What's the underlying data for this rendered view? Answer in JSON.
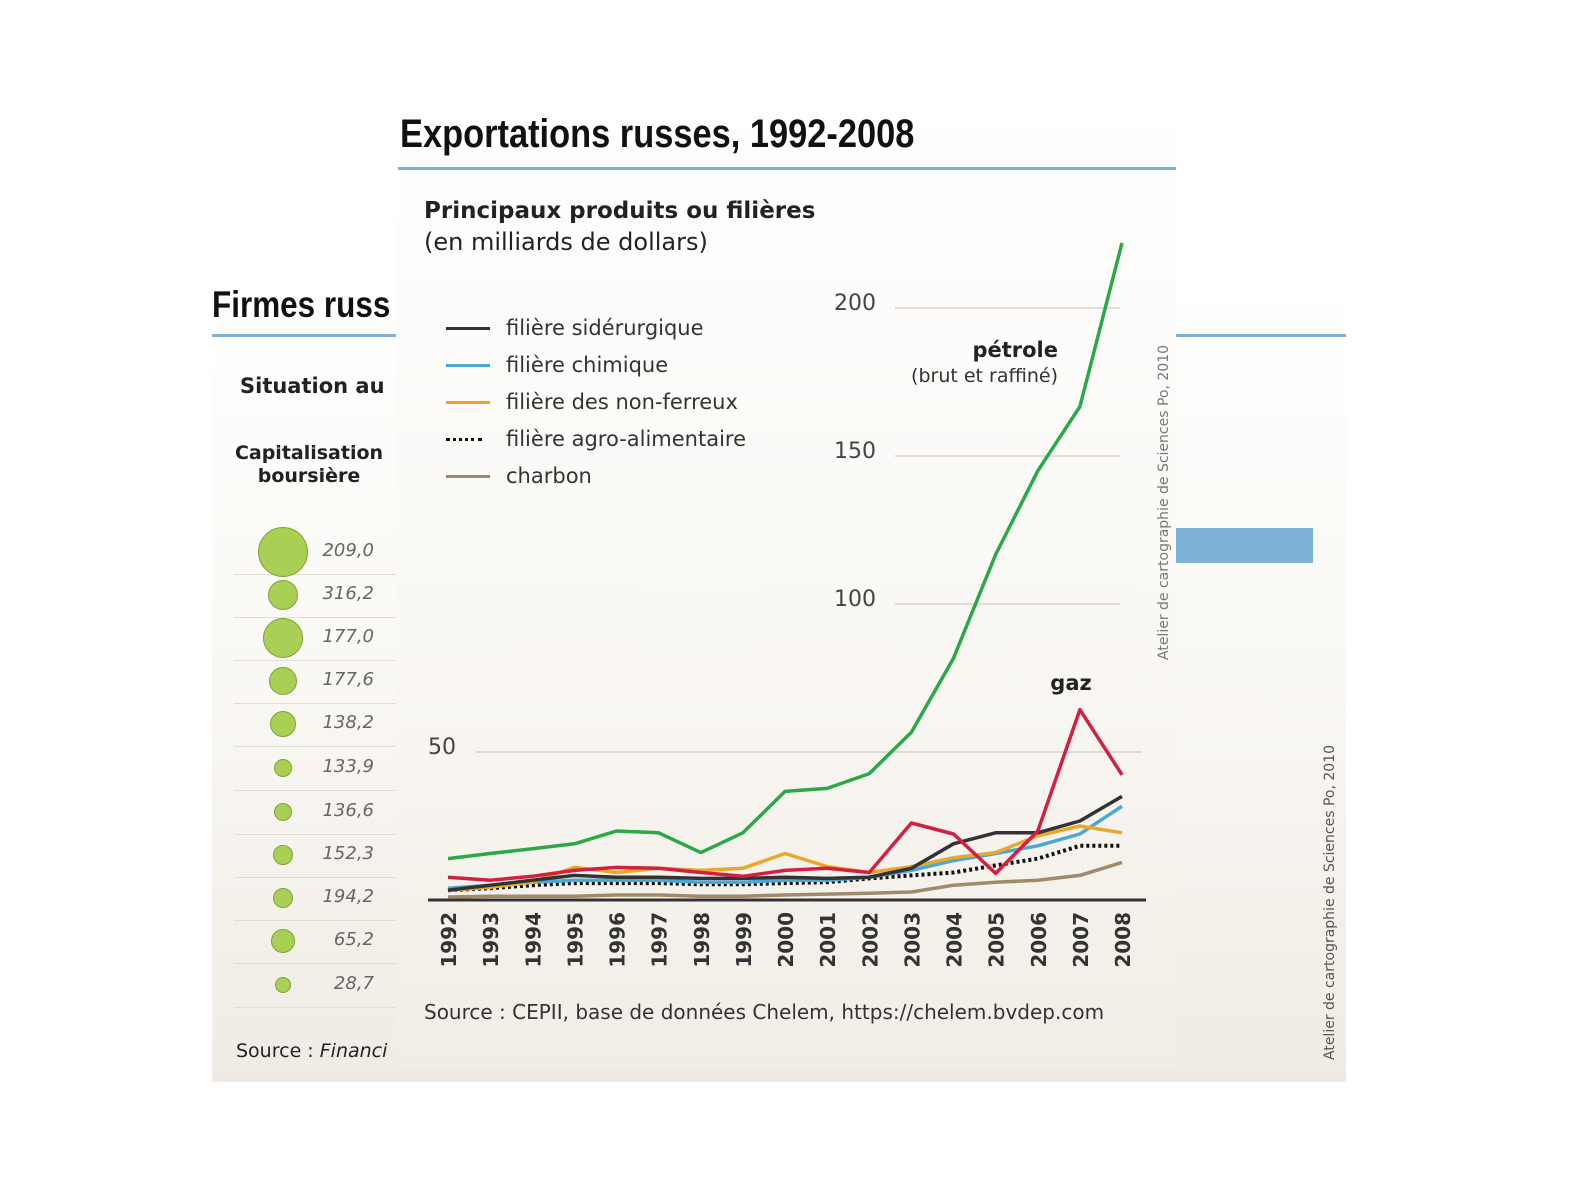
{
  "back_panel": {
    "title": "Firmes russ",
    "subtitle": "Situation au",
    "cap_label_1": "Capitalisation",
    "cap_label_2": "boursière",
    "values": [
      "209,0",
      "316,2",
      "177,0",
      "177,6",
      "138,2",
      "133,9",
      "136,6",
      "152,3",
      "194,2",
      "65,2",
      "28,7"
    ],
    "source_label": "Source : ",
    "source_value": "Financi",
    "credit": "Atelier de cartographie de Sciences Po, 2010",
    "colors": {
      "bubble": "#a9cf54",
      "bar": "#7fb2d8"
    }
  },
  "front_panel": {
    "title": "Exportations russes, 1992-2008",
    "credit": "Atelier de cartographie de Sciences Po, 2010",
    "source": "Source : CEPII, base de données Chelem, https://chelem.bvdep.com"
  },
  "chart_data": {
    "type": "line",
    "title": "Principaux produits ou filières",
    "subtitle": "(en milliards de dollars)",
    "x": [
      1992,
      1993,
      1994,
      1995,
      1996,
      1997,
      1998,
      1999,
      2000,
      2001,
      2002,
      2003,
      2004,
      2005,
      2006,
      2007,
      2008
    ],
    "x_tick_labels": [
      "1992",
      "1993",
      "1994",
      "1995",
      "1996",
      "1997",
      "1998",
      "1999",
      "2000",
      "2001",
      "2002",
      "2003",
      "2004",
      "2005",
      "2006",
      "2007",
      "2008"
    ],
    "y_ticks": [
      50,
      100,
      150,
      200
    ],
    "ylim": [
      0,
      225
    ],
    "grid": true,
    "legend_position": "top-left",
    "annotations": [
      {
        "text": "pétrole",
        "subtext": "(brut et raffiné)",
        "series": "pétrole"
      },
      {
        "text": "gaz",
        "series": "gaz"
      }
    ],
    "series": [
      {
        "name": "pétrole",
        "color": "#2aa84a",
        "style": "solid",
        "legend": false,
        "values": [
          14,
          15.7,
          17.3,
          19,
          23.3,
          22.7,
          16,
          22.7,
          36.7,
          37.7,
          42.7,
          56.7,
          81.7,
          116.7,
          145,
          166.7,
          222
        ]
      },
      {
        "name": "gaz",
        "color": "#d42040",
        "style": "solid",
        "legend": false,
        "values": [
          7.7,
          6.7,
          8,
          10,
          11,
          10.7,
          9.3,
          8,
          10,
          10.7,
          9.3,
          26,
          22.3,
          9,
          23.3,
          64.3,
          42.3
        ]
      },
      {
        "name": "filière sidérurgique",
        "color": "#333333",
        "style": "solid",
        "legend": true,
        "values": [
          3.3,
          5,
          6.7,
          8.3,
          7.7,
          7.7,
          7.3,
          7.3,
          7.7,
          7.3,
          7.7,
          10.7,
          19,
          22.7,
          22.7,
          26.7,
          35
        ]
      },
      {
        "name": "filière chimique",
        "color": "#4aa8d8",
        "style": "solid",
        "legend": true,
        "values": [
          4,
          5,
          6,
          6.7,
          6.7,
          6.7,
          6,
          6,
          6.7,
          6.7,
          7.7,
          10,
          13.3,
          15.7,
          18.3,
          22.3,
          31.7
        ]
      },
      {
        "name": "filière des non-ferreux",
        "color": "#e8a92a",
        "style": "solid",
        "legend": true,
        "values": [
          3.3,
          4.3,
          6,
          11,
          9.3,
          10.7,
          10,
          10.7,
          15.7,
          11.3,
          9.3,
          11.3,
          14.3,
          16,
          21.7,
          25,
          22.7
        ]
      },
      {
        "name": "filière agro-alimentaire",
        "color": "#111111",
        "style": "dotted",
        "legend": true,
        "values": [
          3.3,
          4,
          5,
          5.7,
          5.7,
          5.7,
          5.3,
          5.3,
          5.7,
          6,
          7.3,
          8.3,
          9.3,
          11.7,
          14,
          18.3,
          18.3
        ]
      },
      {
        "name": "charbon",
        "color": "#a08a6a",
        "style": "solid",
        "legend": true,
        "values": [
          1,
          1.3,
          1.3,
          1.3,
          1.7,
          1.7,
          1.3,
          1.3,
          1.7,
          2,
          2.3,
          2.7,
          5,
          6,
          6.7,
          8.3,
          12.7
        ]
      }
    ]
  }
}
